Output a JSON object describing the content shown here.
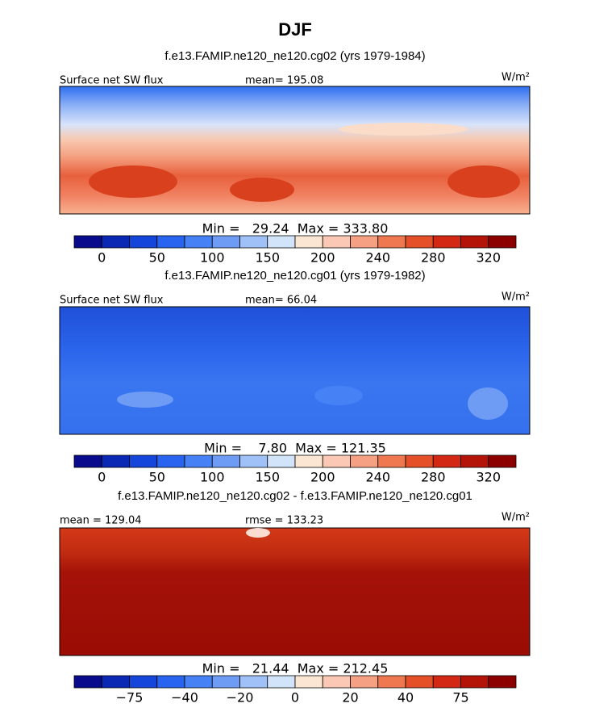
{
  "title": "DJF",
  "colorbar_colors": [
    "#0a0a8c",
    "#0a28b4",
    "#1446dc",
    "#2864f0",
    "#4682f5",
    "#6e9cf5",
    "#a0c0f8",
    "#d2e4fa",
    "#fae6d2",
    "#fac8b4",
    "#f5a082",
    "#f07850",
    "#e65028",
    "#d22814",
    "#b41408",
    "#8c0000"
  ],
  "panels": [
    {
      "subtitle": "f.e13.FAMIP.ne120_ne120.cg02 (yrs 1979-1984)",
      "left_label": "Surface net SW flux",
      "center_label": "mean=  195.08",
      "units": "W/m²",
      "minmax": "Min =   29.24  Max = 333.80",
      "colorbar_labels": [
        "0",
        "50",
        "100",
        "150",
        "200",
        "240",
        "280",
        "320"
      ]
    },
    {
      "subtitle": "f.e13.FAMIP.ne120_ne120.cg01 (yrs 1979-1982)",
      "left_label": "Surface net SW flux",
      "center_label": "mean=  66.04",
      "units": "W/m²",
      "minmax": "Min =    7.80  Max = 121.35",
      "colorbar_labels": [
        "0",
        "50",
        "100",
        "150",
        "200",
        "240",
        "280",
        "320"
      ]
    },
    {
      "subtitle": "f.e13.FAMIP.ne120_ne120.cg02 - f.e13.FAMIP.ne120_ne120.cg01",
      "left_label": "mean = 129.04",
      "center_label": "rmse = 133.23",
      "units": "W/m²",
      "minmax": "Min =   21.44  Max = 212.45",
      "colorbar_labels": [
        "−75",
        "−40",
        "−20",
        "0",
        "20",
        "40",
        "75"
      ]
    }
  ]
}
